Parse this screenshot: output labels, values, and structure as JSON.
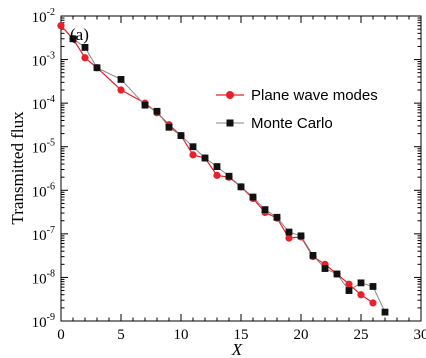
{
  "chart_data": {
    "type": "scatter",
    "panel_label": "(a)",
    "xlabel": "X",
    "ylabel": "Transmitted flux",
    "xlim": [
      0,
      30
    ],
    "ylim": [
      1e-09,
      0.01
    ],
    "y_scale": "log",
    "x_ticks": [
      {
        "value": 0,
        "label": "0"
      },
      {
        "value": 5,
        "label": "5"
      },
      {
        "value": 10,
        "label": "10"
      },
      {
        "value": 15,
        "label": "15"
      },
      {
        "value": 20,
        "label": "20"
      },
      {
        "value": 25,
        "label": "25"
      },
      {
        "value": 30,
        "label": "30"
      }
    ],
    "y_ticks": [
      {
        "value": 0.01,
        "base": "10",
        "exp": "-2"
      },
      {
        "value": 0.001,
        "base": "10",
        "exp": "-3"
      },
      {
        "value": 0.0001,
        "base": "10",
        "exp": "-4"
      },
      {
        "value": 1e-05,
        "base": "10",
        "exp": "-5"
      },
      {
        "value": 1e-06,
        "base": "10",
        "exp": "-6"
      },
      {
        "value": 1e-07,
        "base": "10",
        "exp": "-7"
      },
      {
        "value": 1e-08,
        "base": "10",
        "exp": "-8"
      },
      {
        "value": 1e-09,
        "base": "10",
        "exp": "-9"
      }
    ],
    "grid": false,
    "legend_position": "right",
    "series": [
      {
        "name": "Plane wave modes",
        "marker": "circle",
        "color": "#e8202a",
        "line_color": "#e8202a",
        "x": [
          0,
          1,
          2,
          3,
          5,
          7,
          8,
          9,
          10,
          11,
          12,
          13,
          14,
          15,
          16,
          17,
          18,
          19,
          20,
          21,
          22,
          23,
          24,
          25,
          26
        ],
        "y": [
          0.006,
          0.003,
          0.0011,
          0.00065,
          0.0002,
          0.0001,
          6e-05,
          3.2e-05,
          1.8e-05,
          6.5e-06,
          5.5e-06,
          2.2e-06,
          2e-06,
          1.2e-06,
          6.5e-07,
          3.1e-07,
          2.3e-07,
          8e-08,
          8.5e-08,
          3e-08,
          2e-08,
          1.2e-08,
          7e-09,
          4e-09,
          2.6e-09
        ]
      },
      {
        "name": "Monte Carlo",
        "marker": "square",
        "color": "#111111",
        "line_color": "#888888",
        "x": [
          1,
          2,
          3,
          5,
          7,
          8,
          9,
          10,
          11,
          12,
          13,
          14,
          15,
          16,
          17,
          18,
          19,
          20,
          21,
          22,
          23,
          24,
          25,
          26,
          27
        ],
        "y": [
          0.003,
          0.0019,
          0.00065,
          0.00035,
          9e-05,
          6.5e-05,
          2.8e-05,
          1.8e-05,
          1e-05,
          5.5e-06,
          3.5e-06,
          2.1e-06,
          1.2e-06,
          7e-07,
          3.6e-07,
          2.4e-07,
          1.1e-07,
          9e-08,
          3.2e-08,
          1.6e-08,
          1.2e-08,
          5e-09,
          7.5e-09,
          6.2e-09,
          1.6e-09
        ]
      }
    ]
  }
}
